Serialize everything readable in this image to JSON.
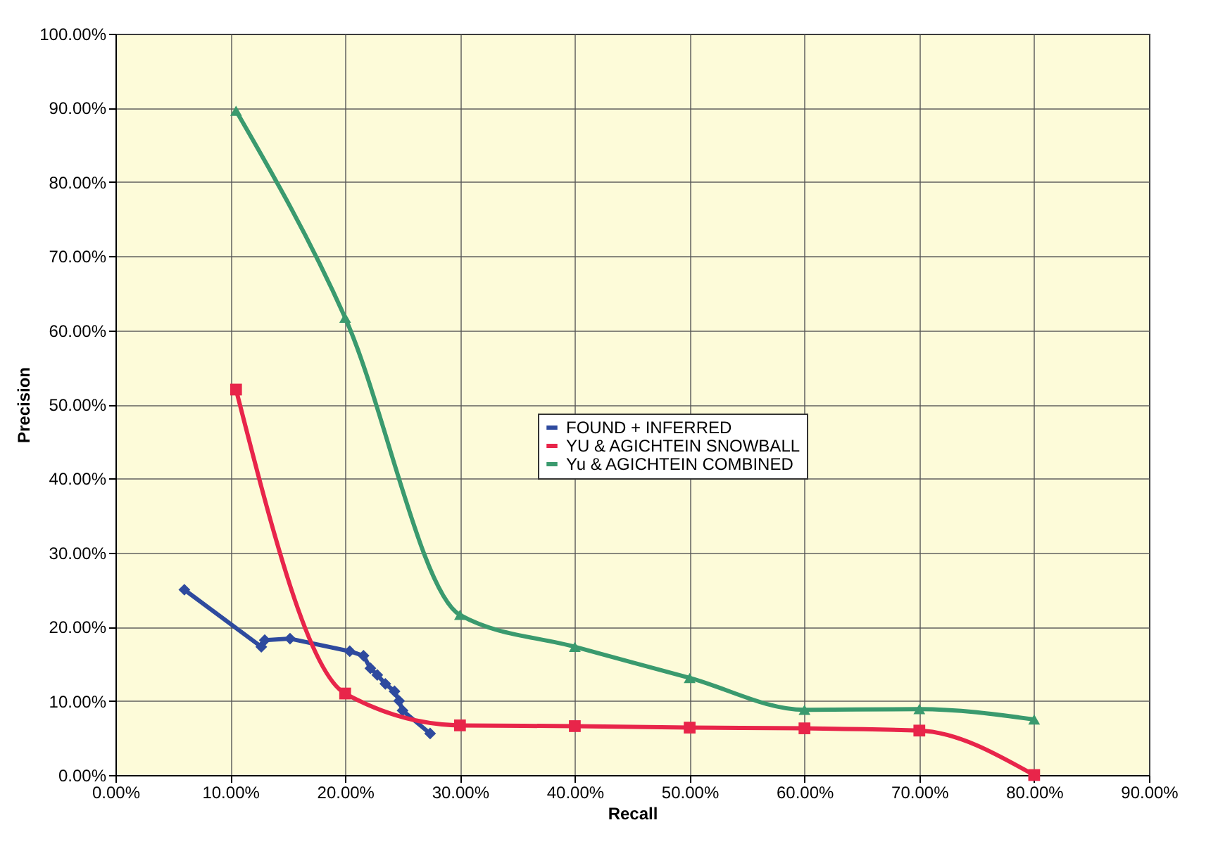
{
  "chart_data": {
    "type": "line",
    "xlabel": "Recall",
    "ylabel": "Precision",
    "xlim": [
      0,
      90
    ],
    "ylim": [
      0,
      100
    ],
    "xticks": [
      {
        "value": 0,
        "label": "0.00%"
      },
      {
        "value": 10,
        "label": "10.00%"
      },
      {
        "value": 20,
        "label": "20.00%"
      },
      {
        "value": 30,
        "label": "30.00%"
      },
      {
        "value": 40,
        "label": "40.00%"
      },
      {
        "value": 50,
        "label": "50.00%"
      },
      {
        "value": 60,
        "label": "60.00%"
      },
      {
        "value": 70,
        "label": "70.00%"
      },
      {
        "value": 80,
        "label": "80.00%"
      },
      {
        "value": 90,
        "label": "90.00%"
      }
    ],
    "yticks": [
      {
        "value": 0,
        "label": "0.00%"
      },
      {
        "value": 10,
        "label": "10.00%"
      },
      {
        "value": 20,
        "label": "20.00%"
      },
      {
        "value": 30,
        "label": "30.00%"
      },
      {
        "value": 40,
        "label": "40.00%"
      },
      {
        "value": 50,
        "label": "50.00%"
      },
      {
        "value": 60,
        "label": "60.00%"
      },
      {
        "value": 70,
        "label": "70.00%"
      },
      {
        "value": 80,
        "label": "80.00%"
      },
      {
        "value": 90,
        "label": "90.00%"
      },
      {
        "value": 100,
        "label": "100.00%"
      }
    ],
    "grid": true,
    "legend": "center",
    "series": [
      {
        "name": "FOUND + INFERRED",
        "color": "#2e4a9e",
        "marker": "diamond",
        "x": [
          6,
          12.7,
          13,
          15.2,
          20.4,
          21.6,
          22.2,
          22.8,
          23.5,
          24.3,
          24.7,
          25,
          27.4
        ],
        "values": [
          25,
          17.3,
          18.2,
          18.4,
          16.7,
          16.1,
          14.4,
          13.5,
          12.3,
          11.3,
          10,
          8.7,
          5.6
        ]
      },
      {
        "name": "YU & AGICHTEIN SNOWBALL",
        "color": "#e8254a",
        "marker": "square",
        "x": [
          10.5,
          20,
          30,
          40,
          50,
          60,
          70,
          80
        ],
        "values": [
          52,
          11,
          6.7,
          6.6,
          6.4,
          6.3,
          6,
          0
        ]
      },
      {
        "name": "Yu & AGICHTEIN COMBINED",
        "color": "#3a9a6e",
        "marker": "triangle",
        "x": [
          10.5,
          20,
          30,
          40,
          50,
          60,
          70,
          80
        ],
        "values": [
          89.6,
          61.7,
          21.6,
          17.3,
          13.1,
          8.8,
          8.9,
          7.5
        ]
      }
    ]
  }
}
